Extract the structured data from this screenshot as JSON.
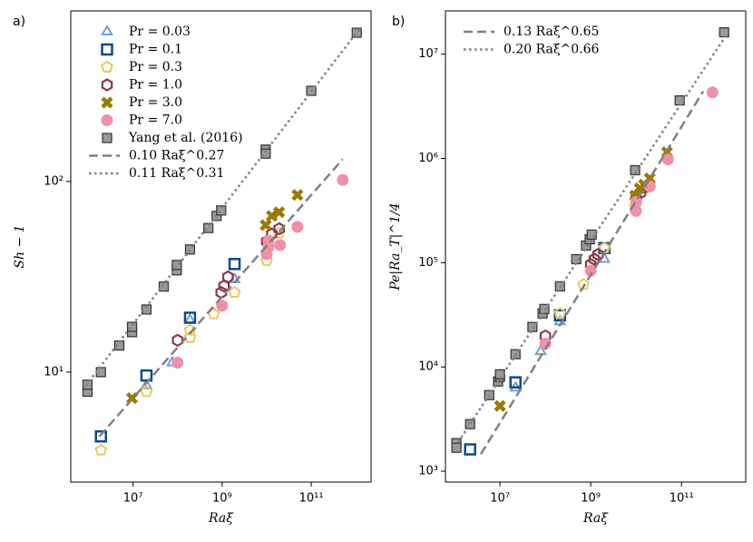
{
  "chart_data": [
    {
      "type": "scatter",
      "panel_label": "a)",
      "xlabel": "Raξ",
      "ylabel": "Sh − 1",
      "xscale": "log",
      "yscale": "log",
      "xlim": [
        400000,
        2200000000000
      ],
      "ylim": [
        2.65,
        785
      ],
      "xticks": [
        {
          "value": 10000000,
          "label": "10⁷"
        },
        {
          "value": 1000000000,
          "label": "10⁹"
        },
        {
          "value": 100000000000,
          "label": "10¹¹"
        }
      ],
      "yticks": [
        {
          "value": 10,
          "label": "10¹"
        },
        {
          "value": 100,
          "label": "10²"
        }
      ],
      "legend": "upper left",
      "series": [
        {
          "name": "Pr = 0.03",
          "color": "#6fa0d8",
          "marker": "triangle",
          "x": [
            20000000,
            76000000,
            190000000,
            1900000000
          ],
          "values": [
            8.5,
            11.2,
            18.7,
            30.6
          ]
        },
        {
          "name": "Pr = 0.1",
          "color": "#0d4a8c",
          "marker": "square",
          "x": [
            1900000,
            20000000,
            190000000,
            1900000000
          ],
          "values": [
            4.6,
            9.6,
            19.3,
            36.9
          ]
        },
        {
          "name": "Pr = 0.3",
          "color": "#e8c860",
          "marker": "pentagon",
          "x": [
            1900000,
            20000000,
            190000000,
            190000000,
            650000000,
            1900000000,
            10000000000,
            19000000000
          ],
          "values": [
            3.9,
            7.9,
            15.2,
            16.6,
            20.2,
            26.2,
            38.5,
            53.6
          ]
        },
        {
          "name": "Pr = 1.0",
          "color": "#8b3a4a",
          "marker": "hexagon",
          "x": [
            100000000,
            950000000,
            1100000000,
            1350000000,
            10000000000,
            13000000000,
            19000000000
          ],
          "values": [
            14.7,
            26.2,
            28.3,
            31.6,
            48.5,
            53,
            56.5
          ]
        },
        {
          "name": "Pr = 3.0",
          "color": "#9a7a00",
          "marker": "x",
          "x": [
            9500000,
            9500000000,
            13000000000,
            19000000000,
            49000000000
          ],
          "values": [
            7.3,
            59,
            66,
            69,
            85
          ]
        },
        {
          "name": "Pr = 7.0",
          "color": "#f090a8",
          "marker": "circle",
          "x": [
            100000000,
            1000000000,
            10000000000,
            11000000000,
            11000000000,
            20000000000,
            49000000000,
            510000000000
          ],
          "values": [
            11.2,
            22.3,
            41.6,
            45.4,
            49,
            46.4,
            57.8,
            102
          ]
        },
        {
          "name": "Yang et al. (2016)",
          "color": "#999999",
          "marker": "graysquare",
          "x": [
            950000,
            950000,
            1900000,
            4900000,
            9500000,
            9500000,
            20000000,
            49000000,
            96000000,
            96000000,
            190000000,
            490000000,
            750000000,
            950000000,
            9500000000,
            9500000000,
            100000000000,
            1050000000000
          ],
          "values": [
            7.9,
            8.6,
            10,
            13.8,
            16.2,
            17.3,
            21.3,
            28.1,
            34.2,
            36.5,
            44,
            57,
            66,
            70.5,
            147,
            140,
            299,
            603
          ]
        },
        {
          "name": "0.10 Raξ^0.27",
          "color": "#808080",
          "linestyle": "dashed",
          "x": [
            1760000,
            510000000000
          ],
          "values": [
            4.6,
            131
          ]
        },
        {
          "name": "0.11 Raξ^0.31",
          "color": "#808080",
          "linestyle": "dotted",
          "x": [
            870000,
            1300000000000
          ],
          "values": [
            8.5,
            646
          ]
        }
      ]
    },
    {
      "type": "scatter",
      "panel_label": "b)",
      "xlabel": "Raξ",
      "ylabel": "Pe|Ra_T|^1/4",
      "xscale": "log",
      "yscale": "log",
      "xlim": [
        630000,
        2600000000000
      ],
      "ylim": [
        787,
        26000000
      ],
      "xticks": [
        {
          "value": 10000000,
          "label": "10⁷"
        },
        {
          "value": 1000000000,
          "label": "10⁹"
        },
        {
          "value": 100000000000,
          "label": "10¹¹"
        }
      ],
      "yticks": [
        {
          "value": 1000,
          "label": "10³"
        },
        {
          "value": 10000,
          "label": "10⁴"
        },
        {
          "value": 100000,
          "label": "10⁵"
        },
        {
          "value": 1000000,
          "label": "10⁶"
        },
        {
          "value": 10000000,
          "label": "10⁷"
        }
      ],
      "legend": "upper left",
      "series": [
        {
          "color": "#6fa0d8",
          "marker": "triangle",
          "x": [
            22000000,
            79000000,
            210000000,
            2000000000
          ],
          "values": [
            6300,
            14100,
            27200,
            108000
          ]
        },
        {
          "color": "#0d4a8c",
          "marker": "square",
          "x": [
            2200000,
            22000000,
            210000000,
            2000000000
          ],
          "values": [
            1620,
            7120,
            31300,
            138000
          ]
        },
        {
          "color": "#e8c860",
          "marker": "pentagon",
          "x": [
            210000000,
            690000000,
            2000000000,
            9500000000,
            20000000000
          ],
          "values": [
            32600,
            61800,
            138000,
            346000,
            560000
          ]
        },
        {
          "color": "#8b3a4a",
          "marker": "hexagon",
          "x": [
            100000000,
            1000000000,
            1200000000,
            1450000000,
            10000000000,
            12500000000,
            17500000000
          ],
          "values": [
            19800,
            96200,
            108000,
            120000,
            414000,
            468000,
            538000
          ]
        },
        {
          "color": "#9a7a00",
          "marker": "x",
          "x": [
            10000000,
            9500000000,
            12000000000,
            15000000000,
            20000000000,
            48000000000
          ],
          "values": [
            4230,
            440000,
            516000,
            560000,
            644000,
            1150000
          ]
        },
        {
          "color": "#f090a8",
          "marker": "circle",
          "x": [
            100000000,
            1000000000,
            10000000000,
            10000000000,
            20000000000,
            50000000000,
            480000000000
          ],
          "values": [
            16800,
            83600,
            313000,
            383000,
            538000,
            979000,
            4300000
          ]
        },
        {
          "color": "#999999",
          "marker": "graysquare",
          "x": [
            1100000,
            1100000,
            2200000,
            5800000,
            9100000,
            10000000,
            10000000,
            22000000,
            52000000,
            87000000,
            95000000,
            210000000,
            480000000,
            790000000,
            950000000,
            1050000000,
            9500000000,
            91000000000,
            870000000000
          ],
          "values": [
            1860,
            1680,
            2830,
            5370,
            7260,
            8020,
            8500,
            13250,
            24200,
            32600,
            36000,
            59400,
            108000,
            146000,
            168000,
            186000,
            771000,
            3600000,
            16200000
          ]
        },
        {
          "name": "0.13 Raξ^0.65",
          "color": "#808080",
          "linestyle": "dashed",
          "x": [
            3800000,
            300000000000
          ],
          "values": [
            1460,
            4400000
          ]
        },
        {
          "name": "0.20 Raξ^0.66",
          "color": "#808080",
          "linestyle": "dotted",
          "x": [
            1200000,
            950000000000
          ],
          "values": [
            1900,
            15000000
          ]
        }
      ]
    }
  ]
}
